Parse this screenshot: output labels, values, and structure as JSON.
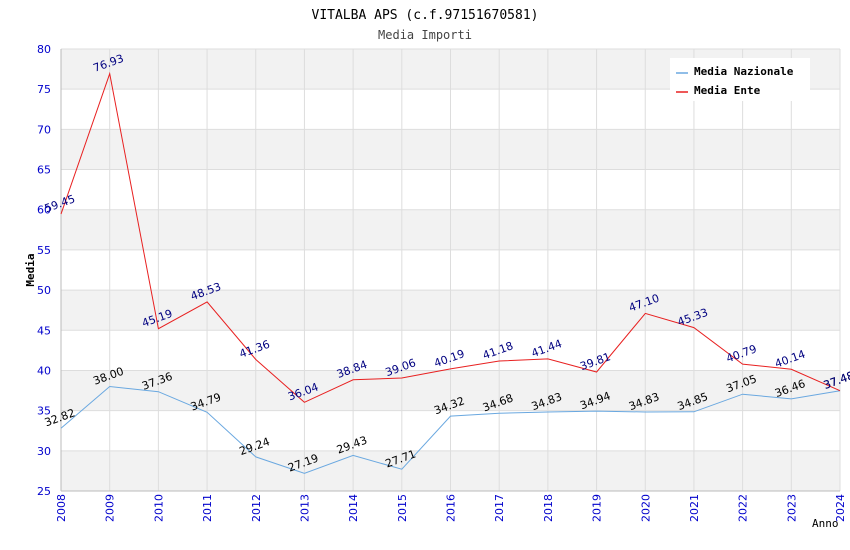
{
  "chart_data": {
    "type": "line",
    "title": "VITALBA APS (c.f.97151670581)",
    "subtitle": "Media Importi",
    "xlabel": "Anno",
    "ylabel": "Media",
    "ylim": [
      25,
      80
    ],
    "y_ticks": [
      "25",
      "30",
      "35",
      "40",
      "45",
      "50",
      "55",
      "60",
      "65",
      "70",
      "75",
      "80"
    ],
    "categories": [
      "2008",
      "2009",
      "2010",
      "2011",
      "2012",
      "2013",
      "2014",
      "2015",
      "2016",
      "2017",
      "2018",
      "2019",
      "2020",
      "2021",
      "2022",
      "2023",
      "2024"
    ],
    "grid": true,
    "legend_position": "top-right",
    "series": [
      {
        "name": "Media Nazionale",
        "color": "#6aa8e0",
        "label_color": "#000000",
        "values": [
          32.82,
          38.0,
          37.36,
          34.79,
          29.24,
          27.19,
          29.43,
          27.71,
          34.32,
          34.68,
          34.83,
          34.94,
          34.83,
          34.85,
          37.05,
          36.46,
          37.48
        ],
        "labels": [
          "32.82",
          "38.00",
          "37.36",
          "34.79",
          "29.24",
          "27.19",
          "29.43",
          "27.71",
          "34.32",
          "34.68",
          "34.83",
          "34.94",
          "34.83",
          "34.85",
          "37.05",
          "36.46",
          "37.48"
        ]
      },
      {
        "name": "Media Ente",
        "color": "#e82020",
        "label_color": "#000080",
        "values": [
          59.45,
          76.93,
          45.19,
          48.53,
          41.36,
          36.04,
          38.84,
          39.06,
          40.19,
          41.18,
          41.44,
          39.81,
          47.1,
          45.33,
          40.79,
          40.14,
          37.48
        ],
        "labels": [
          "59.45",
          "76.93",
          "45.19",
          "48.53",
          "41.36",
          "36.04",
          "38.84",
          "39.06",
          "40.19",
          "41.18",
          "41.44",
          "39.81",
          "47.10",
          "45.33",
          "40.79",
          "40.14",
          "37.48"
        ]
      }
    ]
  }
}
